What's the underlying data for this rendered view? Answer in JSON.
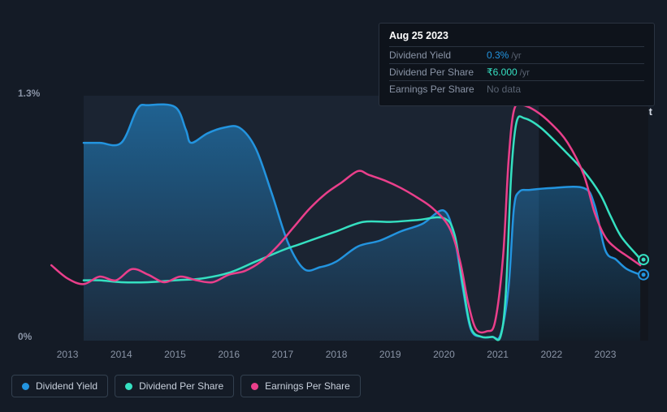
{
  "chart": {
    "type": "line",
    "background": "#141b26",
    "panel_background_left": "#1b2432",
    "panel_background_right": "#12161e",
    "grid_color": "#2a3340",
    "label_color": "#8a94a6",
    "label_fontsize": 12,
    "x_axis": {
      "min": 2012.5,
      "max": 2023.8,
      "ticks": [
        2013,
        2014,
        2015,
        2016,
        2017,
        2018,
        2019,
        2020,
        2021,
        2022,
        2023
      ],
      "tick_labels": [
        "2013",
        "2014",
        "2015",
        "2016",
        "2017",
        "2018",
        "2019",
        "2020",
        "2021",
        "2022",
        "2023"
      ]
    },
    "y_axis": {
      "min": 0,
      "max": 1.3,
      "ticks": [
        0,
        1.3
      ],
      "tick_labels": [
        "0%",
        "1.3%"
      ]
    },
    "past_label": "Past",
    "series": [
      {
        "id": "dividend_yield",
        "label": "Dividend Yield",
        "color": "#2394df",
        "stroke_width": 2.5,
        "fill": true,
        "fill_opacity_start": 0.55,
        "fill_opacity_end": 0.05,
        "data": [
          [
            2013.3,
            1.05
          ],
          [
            2013.6,
            1.05
          ],
          [
            2014.0,
            1.05
          ],
          [
            2014.3,
            1.23
          ],
          [
            2014.5,
            1.25
          ],
          [
            2015.0,
            1.24
          ],
          [
            2015.2,
            1.12
          ],
          [
            2015.3,
            1.05
          ],
          [
            2015.6,
            1.1
          ],
          [
            2015.9,
            1.13
          ],
          [
            2016.2,
            1.13
          ],
          [
            2016.5,
            1.02
          ],
          [
            2016.8,
            0.78
          ],
          [
            2017.1,
            0.52
          ],
          [
            2017.4,
            0.38
          ],
          [
            2017.7,
            0.39
          ],
          [
            2018.0,
            0.42
          ],
          [
            2018.4,
            0.5
          ],
          [
            2018.8,
            0.53
          ],
          [
            2019.2,
            0.58
          ],
          [
            2019.6,
            0.62
          ],
          [
            2020.0,
            0.69
          ],
          [
            2020.2,
            0.54
          ],
          [
            2020.35,
            0.28
          ],
          [
            2020.5,
            0.06
          ],
          [
            2020.7,
            0.02
          ],
          [
            2020.9,
            0.02
          ],
          [
            2021.05,
            0.03
          ],
          [
            2021.2,
            0.28
          ],
          [
            2021.3,
            0.7
          ],
          [
            2021.4,
            0.79
          ],
          [
            2021.6,
            0.8
          ],
          [
            2022.0,
            0.81
          ],
          [
            2022.6,
            0.81
          ],
          [
            2022.8,
            0.72
          ],
          [
            2023.0,
            0.48
          ],
          [
            2023.2,
            0.43
          ],
          [
            2023.4,
            0.38
          ],
          [
            2023.65,
            0.35
          ]
        ]
      },
      {
        "id": "dividend_per_share",
        "label": "Dividend Per Share",
        "color": "#35e0c1",
        "stroke_width": 2.5,
        "fill": false,
        "data": [
          [
            2013.3,
            0.32
          ],
          [
            2013.6,
            0.32
          ],
          [
            2014.0,
            0.31
          ],
          [
            2014.5,
            0.31
          ],
          [
            2015.0,
            0.32
          ],
          [
            2015.5,
            0.33
          ],
          [
            2016.0,
            0.36
          ],
          [
            2016.5,
            0.42
          ],
          [
            2017.0,
            0.48
          ],
          [
            2017.3,
            0.51
          ],
          [
            2017.7,
            0.55
          ],
          [
            2018.0,
            0.58
          ],
          [
            2018.5,
            0.63
          ],
          [
            2019.0,
            0.63
          ],
          [
            2019.5,
            0.64
          ],
          [
            2020.0,
            0.65
          ],
          [
            2020.2,
            0.56
          ],
          [
            2020.35,
            0.3
          ],
          [
            2020.5,
            0.07
          ],
          [
            2020.7,
            0.02
          ],
          [
            2020.9,
            0.02
          ],
          [
            2021.05,
            0.02
          ],
          [
            2021.15,
            0.25
          ],
          [
            2021.25,
            0.88
          ],
          [
            2021.35,
            1.16
          ],
          [
            2021.5,
            1.18
          ],
          [
            2021.8,
            1.13
          ],
          [
            2022.2,
            1.02
          ],
          [
            2022.6,
            0.9
          ],
          [
            2022.9,
            0.78
          ],
          [
            2023.1,
            0.66
          ],
          [
            2023.3,
            0.55
          ],
          [
            2023.6,
            0.45
          ],
          [
            2023.65,
            0.43
          ]
        ]
      },
      {
        "id": "earnings_per_share",
        "label": "Earnings Per Share",
        "color": "#ea3f8b",
        "stroke_width": 2.5,
        "fill": false,
        "data": [
          [
            2012.7,
            0.4
          ],
          [
            2013.0,
            0.33
          ],
          [
            2013.3,
            0.3
          ],
          [
            2013.6,
            0.34
          ],
          [
            2013.9,
            0.32
          ],
          [
            2014.2,
            0.38
          ],
          [
            2014.5,
            0.35
          ],
          [
            2014.8,
            0.31
          ],
          [
            2015.1,
            0.34
          ],
          [
            2015.4,
            0.32
          ],
          [
            2015.7,
            0.31
          ],
          [
            2016.0,
            0.35
          ],
          [
            2016.3,
            0.37
          ],
          [
            2016.6,
            0.42
          ],
          [
            2016.9,
            0.5
          ],
          [
            2017.2,
            0.6
          ],
          [
            2017.5,
            0.7
          ],
          [
            2017.8,
            0.78
          ],
          [
            2018.1,
            0.84
          ],
          [
            2018.4,
            0.9
          ],
          [
            2018.6,
            0.88
          ],
          [
            2018.9,
            0.85
          ],
          [
            2019.2,
            0.81
          ],
          [
            2019.5,
            0.76
          ],
          [
            2019.8,
            0.7
          ],
          [
            2020.1,
            0.6
          ],
          [
            2020.3,
            0.42
          ],
          [
            2020.45,
            0.2
          ],
          [
            2020.6,
            0.06
          ],
          [
            2020.8,
            0.05
          ],
          [
            2020.95,
            0.1
          ],
          [
            2021.1,
            0.45
          ],
          [
            2021.2,
            0.95
          ],
          [
            2021.3,
            1.22
          ],
          [
            2021.45,
            1.25
          ],
          [
            2021.7,
            1.22
          ],
          [
            2022.0,
            1.15
          ],
          [
            2022.3,
            1.05
          ],
          [
            2022.6,
            0.88
          ],
          [
            2022.8,
            0.68
          ],
          [
            2023.0,
            0.55
          ],
          [
            2023.2,
            0.49
          ],
          [
            2023.4,
            0.45
          ],
          [
            2023.6,
            0.41
          ],
          [
            2023.65,
            0.4
          ]
        ]
      }
    ]
  },
  "tooltip": {
    "date": "Aug 25 2023",
    "rows": [
      {
        "key": "dividend_yield",
        "label": "Dividend Yield",
        "value": "0.3%",
        "suffix": "/yr",
        "color": "#2394df"
      },
      {
        "key": "dividend_per_share",
        "label": "Dividend Per Share",
        "value": "₹6.000",
        "suffix": "/yr",
        "color": "#35e0c1"
      },
      {
        "key": "earnings_per_share",
        "label": "Earnings Per Share",
        "value": "No data",
        "suffix": "",
        "color": "#5a6372"
      }
    ]
  },
  "legend": [
    {
      "id": "dividend_yield",
      "label": "Dividend Yield",
      "color": "#2394df"
    },
    {
      "id": "dividend_per_share",
      "label": "Dividend Per Share",
      "color": "#35e0c1"
    },
    {
      "id": "earnings_per_share",
      "label": "Earnings Per Share",
      "color": "#ea3f8b"
    }
  ]
}
